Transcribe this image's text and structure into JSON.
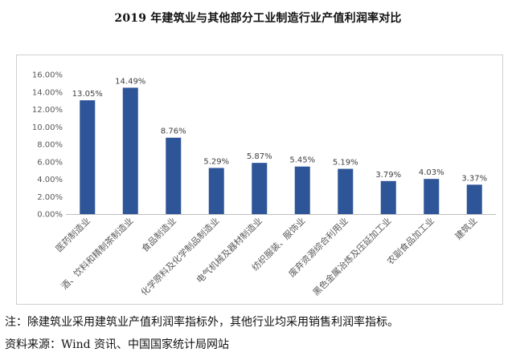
{
  "chart_data": {
    "type": "bar",
    "title": "2019 年建筑业与其他部分工业制造行业产值利润率对比",
    "categories": [
      "医药制造业",
      "酒、饮料和精制茶制造业",
      "食品制造业",
      "化学原料及化学制品制造业",
      "电气机械及器材制造业",
      "纺织服装、服饰业",
      "废弃资源综合利用业",
      "黑色金属冶炼及压延加工业",
      "农副食品加工业",
      "建筑业"
    ],
    "values": [
      13.05,
      14.49,
      8.76,
      5.29,
      5.87,
      5.45,
      5.19,
      3.79,
      4.03,
      3.37
    ],
    "value_labels": [
      "13.05%",
      "14.49%",
      "8.76%",
      "5.29%",
      "5.87%",
      "5.45%",
      "5.19%",
      "3.79%",
      "4.03%",
      "3.37%"
    ],
    "y_ticks": [
      "0.00%",
      "2.00%",
      "4.00%",
      "6.00%",
      "8.00%",
      "10.00%",
      "12.00%",
      "14.00%",
      "16.00%"
    ],
    "ylim": [
      0,
      16
    ],
    "xlabel": "",
    "ylabel": "",
    "grid": false,
    "bar_color": "#2E5597"
  },
  "note": "注：除建筑业采用建筑业产值利润率指标外，其他行业均采用销售利润率指标。",
  "source": "资料来源：Wind 资讯、中国国家统计局网站"
}
